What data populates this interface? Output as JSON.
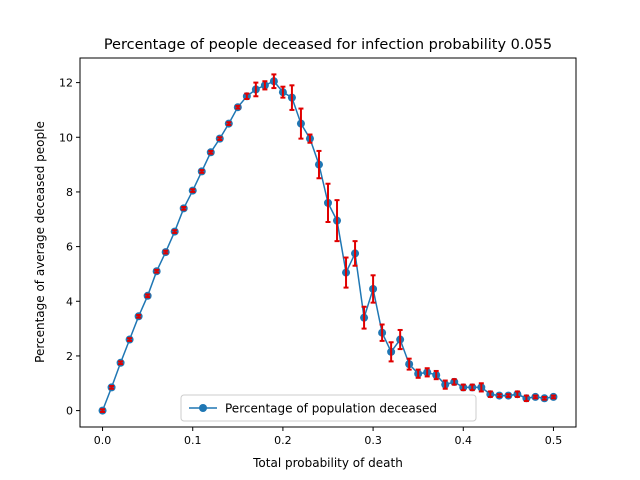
{
  "chart_data": {
    "type": "line",
    "title": "Percentage of people deceased for infection probability  0.055",
    "xlabel": "Total probability of death",
    "ylabel": "Percentage of average deceased people",
    "xlim": [
      -0.025,
      0.525
    ],
    "ylim": [
      -0.6,
      12.9
    ],
    "xticks": [
      0.0,
      0.1,
      0.2,
      0.3,
      0.4,
      0.5
    ],
    "xtick_labels": [
      "0.0",
      "0.1",
      "0.2",
      "0.3",
      "0.4",
      "0.5"
    ],
    "yticks": [
      0,
      2,
      4,
      6,
      8,
      10,
      12
    ],
    "ytick_labels": [
      "0",
      "2",
      "4",
      "6",
      "8",
      "10",
      "12"
    ],
    "grid": false,
    "legend": {
      "placement": "bottom-center",
      "entries": [
        "Percentage of population deceased"
      ]
    },
    "series": [
      {
        "name": "Percentage of population deceased",
        "color": "#1f77b4",
        "errorbar_color": "#e00000",
        "marker": "circle",
        "x": [
          0.0,
          0.01,
          0.02,
          0.03,
          0.04,
          0.05,
          0.06,
          0.07,
          0.08,
          0.09,
          0.1,
          0.11,
          0.12,
          0.13,
          0.14,
          0.15,
          0.16,
          0.17,
          0.18,
          0.19,
          0.2,
          0.21,
          0.22,
          0.23,
          0.24,
          0.25,
          0.26,
          0.27,
          0.28,
          0.29,
          0.3,
          0.31,
          0.32,
          0.33,
          0.34,
          0.35,
          0.36,
          0.37,
          0.38,
          0.39,
          0.4,
          0.41,
          0.42,
          0.43,
          0.44,
          0.45,
          0.46,
          0.47,
          0.48,
          0.49,
          0.5
        ],
        "y": [
          0.0,
          0.85,
          1.75,
          2.6,
          3.45,
          4.2,
          5.1,
          5.8,
          6.55,
          7.4,
          8.05,
          8.75,
          9.45,
          9.95,
          10.5,
          11.1,
          11.5,
          11.75,
          11.9,
          12.05,
          11.65,
          11.45,
          10.5,
          9.95,
          9.0,
          7.6,
          6.95,
          5.05,
          5.75,
          3.4,
          4.45,
          2.85,
          2.15,
          2.6,
          1.7,
          1.35,
          1.4,
          1.3,
          0.95,
          1.05,
          0.85,
          0.85,
          0.85,
          0.6,
          0.55,
          0.55,
          0.6,
          0.45,
          0.5,
          0.45,
          0.5
        ],
        "yerr": [
          0.05,
          0.05,
          0.05,
          0.05,
          0.05,
          0.05,
          0.05,
          0.05,
          0.05,
          0.05,
          0.05,
          0.05,
          0.05,
          0.05,
          0.05,
          0.05,
          0.1,
          0.25,
          0.15,
          0.25,
          0.2,
          0.45,
          0.55,
          0.15,
          0.5,
          0.7,
          0.75,
          0.55,
          0.45,
          0.4,
          0.5,
          0.3,
          0.35,
          0.35,
          0.2,
          0.15,
          0.15,
          0.15,
          0.15,
          0.1,
          0.1,
          0.1,
          0.15,
          0.1,
          0.05,
          0.05,
          0.1,
          0.1,
          0.05,
          0.05,
          0.05
        ]
      }
    ]
  }
}
